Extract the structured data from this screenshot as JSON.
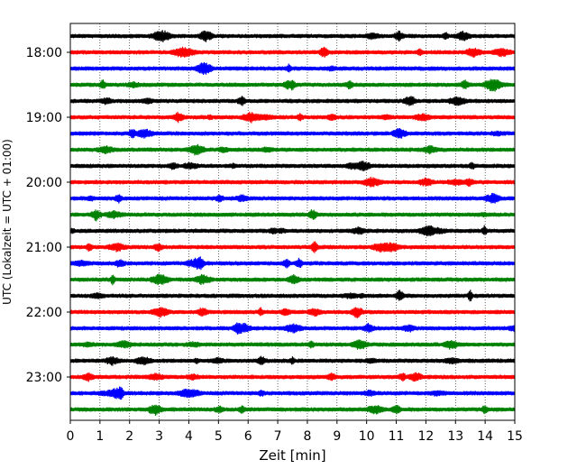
{
  "chart_data": {
    "type": "line",
    "title": "",
    "xlabel": "Zeit  [min]",
    "ylabel": "UTC (Lokalzeit = UTC + 01:00)",
    "xlim": [
      0,
      15
    ],
    "x_ticks": [
      "0",
      "1",
      "2",
      "3",
      "4",
      "5",
      "6",
      "7",
      "8",
      "9",
      "10",
      "11",
      "12",
      "13",
      "14",
      "15"
    ],
    "y_tick_labels": [
      "18:00",
      "19:00",
      "20:00",
      "21:00",
      "22:00",
      "23:00"
    ],
    "grid": "vertical dotted at each minute",
    "trace_colors": [
      "#000000",
      "#ff0000",
      "#0000ff",
      "#008000"
    ],
    "series": [
      {
        "start": "17:45",
        "color": "#000000"
      },
      {
        "start": "18:00",
        "color": "#ff0000"
      },
      {
        "start": "18:15",
        "color": "#0000ff"
      },
      {
        "start": "18:30",
        "color": "#008000"
      },
      {
        "start": "18:45",
        "color": "#000000"
      },
      {
        "start": "19:00",
        "color": "#ff0000"
      },
      {
        "start": "19:15",
        "color": "#0000ff"
      },
      {
        "start": "19:30",
        "color": "#008000"
      },
      {
        "start": "19:45",
        "color": "#000000"
      },
      {
        "start": "20:00",
        "color": "#ff0000"
      },
      {
        "start": "20:15",
        "color": "#0000ff"
      },
      {
        "start": "20:30",
        "color": "#008000"
      },
      {
        "start": "20:45",
        "color": "#000000"
      },
      {
        "start": "21:00",
        "color": "#ff0000"
      },
      {
        "start": "21:15",
        "color": "#0000ff"
      },
      {
        "start": "21:30",
        "color": "#008000"
      },
      {
        "start": "21:45",
        "color": "#000000"
      },
      {
        "start": "22:00",
        "color": "#ff0000"
      },
      {
        "start": "22:15",
        "color": "#0000ff"
      },
      {
        "start": "22:30",
        "color": "#008000"
      },
      {
        "start": "22:45",
        "color": "#000000"
      },
      {
        "start": "23:00",
        "color": "#ff0000"
      },
      {
        "start": "23:15",
        "color": "#0000ff"
      },
      {
        "start": "23:30",
        "color": "#008000"
      }
    ]
  }
}
